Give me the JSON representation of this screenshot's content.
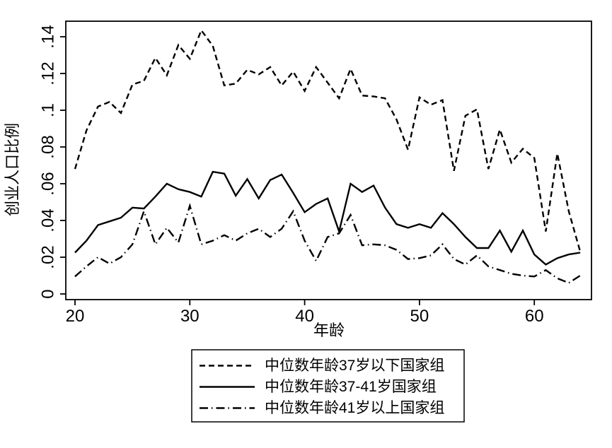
{
  "figure": {
    "background": "#ffffff",
    "ink_color": "#000000"
  },
  "chart_data": {
    "type": "line",
    "title": "",
    "xlabel": "年龄",
    "ylabel": "创业人口比例",
    "x_tick_labels": [
      "20",
      "30",
      "40",
      "50",
      "60"
    ],
    "y_tick_labels": [
      "0",
      ".02",
      ".04",
      ".06",
      ".08",
      ".1",
      ".12",
      ".14"
    ],
    "xlim": [
      19.2,
      65
    ],
    "ylim": [
      -0.004,
      0.1485
    ],
    "grid": "off",
    "legend_position": "bottom-center",
    "x": [
      20,
      21,
      22,
      23,
      24,
      25,
      26,
      27,
      28,
      29,
      30,
      31,
      32,
      33,
      34,
      35,
      36,
      37,
      38,
      39,
      40,
      41,
      42,
      43,
      44,
      45,
      46,
      47,
      48,
      49,
      50,
      51,
      52,
      53,
      54,
      55,
      56,
      57,
      58,
      59,
      60,
      61,
      62,
      63,
      64
    ],
    "series": [
      {
        "name": "中位数年龄37岁以下国家组",
        "line_style": "dashed",
        "color": "#000000",
        "values": [
          0.068,
          0.089,
          0.102,
          0.1045,
          0.0985,
          0.114,
          0.116,
          0.1285,
          0.119,
          0.1355,
          0.128,
          0.1435,
          0.135,
          0.1135,
          0.1145,
          0.122,
          0.1195,
          0.1235,
          0.1135,
          0.121,
          0.1105,
          0.1235,
          0.115,
          0.1065,
          0.1225,
          0.108,
          0.1075,
          0.1065,
          0.095,
          0.0785,
          0.107,
          0.103,
          0.1055,
          0.067,
          0.097,
          0.1005,
          0.068,
          0.0895,
          0.0715,
          0.079,
          0.074,
          0.034,
          0.0765,
          0.045,
          0.023
        ]
      },
      {
        "name": "中位数年龄37-41岁国家组",
        "line_style": "solid",
        "color": "#000000",
        "values": [
          0.0225,
          0.029,
          0.0375,
          0.0395,
          0.0415,
          0.047,
          0.0465,
          0.053,
          0.06,
          0.057,
          0.0555,
          0.053,
          0.0665,
          0.0655,
          0.0535,
          0.0625,
          0.052,
          0.062,
          0.065,
          0.055,
          0.0445,
          0.049,
          0.052,
          0.034,
          0.06,
          0.0555,
          0.059,
          0.047,
          0.038,
          0.036,
          0.038,
          0.036,
          0.044,
          0.038,
          0.031,
          0.025,
          0.025,
          0.0345,
          0.023,
          0.0345,
          0.0215,
          0.016,
          0.0195,
          0.0215,
          0.0225
        ]
      },
      {
        "name": "中位数年龄41岁以上国家组",
        "line_style": "dash-dot",
        "color": "#000000",
        "values": [
          0.0095,
          0.015,
          0.02,
          0.0165,
          0.02,
          0.027,
          0.045,
          0.027,
          0.036,
          0.028,
          0.048,
          0.027,
          0.029,
          0.032,
          0.029,
          0.033,
          0.0355,
          0.031,
          0.0355,
          0.045,
          0.029,
          0.018,
          0.031,
          0.033,
          0.043,
          0.0265,
          0.027,
          0.0265,
          0.024,
          0.019,
          0.0195,
          0.021,
          0.027,
          0.019,
          0.016,
          0.021,
          0.015,
          0.013,
          0.011,
          0.01,
          0.0095,
          0.013,
          0.0085,
          0.006,
          0.01
        ]
      }
    ]
  }
}
